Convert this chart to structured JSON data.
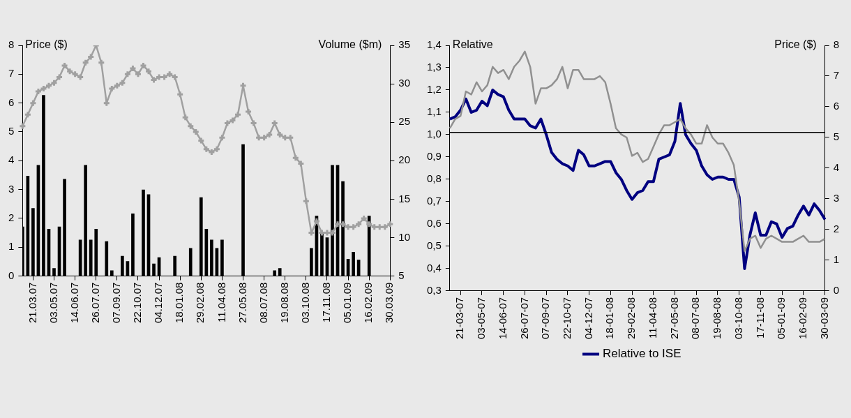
{
  "chart_data": [
    {
      "type": "line",
      "ylabel": "Price ($)",
      "y2label": "Volume ($m)",
      "marker": "cross",
      "grid": false,
      "categories": [
        null,
        null,
        "21.03.07",
        null,
        null,
        null,
        "03.05.07",
        null,
        null,
        null,
        "14.06.07",
        null,
        null,
        null,
        "26.07.07",
        null,
        null,
        null,
        "07.09.07",
        null,
        null,
        null,
        "22.10.07",
        null,
        null,
        null,
        "04.12.07",
        null,
        null,
        null,
        "18.01.08",
        null,
        null,
        null,
        "29.02.08",
        null,
        null,
        null,
        "11.04.08",
        null,
        null,
        null,
        "27.05.08",
        null,
        null,
        null,
        "08.07.08",
        null,
        null,
        null,
        "19.08.08",
        null,
        null,
        null,
        "03.10.08",
        null,
        null,
        null,
        "17.11.08",
        null,
        null,
        null,
        "05.01.09",
        null,
        null,
        null,
        "16.02.09",
        null,
        null,
        null,
        "30.03.09"
      ],
      "ylim": [
        0,
        8
      ],
      "yticks": [
        0,
        1,
        2,
        3,
        4,
        5,
        6,
        7,
        8
      ],
      "y2lim": [
        5,
        35
      ],
      "y2ticks": [
        5,
        10,
        15,
        20,
        25,
        30,
        35
      ],
      "series": [
        {
          "type": "line",
          "color": "#a0a0a0",
          "values": [
            5.2,
            5.6,
            6.0,
            6.4,
            6.5,
            6.6,
            6.7,
            6.9,
            7.3,
            7.1,
            7.0,
            6.9,
            7.4,
            7.6,
            8.0,
            7.4,
            6.0,
            6.5,
            6.6,
            6.7,
            7.0,
            7.2,
            7.0,
            7.3,
            7.1,
            6.8,
            6.9,
            6.9,
            7.0,
            6.9,
            6.3,
            5.5,
            5.2,
            5.0,
            4.7,
            4.4,
            4.3,
            4.4,
            4.8,
            5.3,
            5.4,
            5.6,
            6.6,
            5.7,
            5.3,
            4.8,
            4.8,
            4.9,
            5.3,
            4.9,
            4.8,
            4.8,
            4.1,
            3.9,
            2.6,
            1.5,
            1.9,
            1.5,
            1.5,
            1.5,
            1.8,
            1.8,
            1.7,
            1.7,
            1.8,
            2.0,
            1.8,
            1.7,
            1.7,
            1.7,
            1.8
          ]
        },
        {
          "type": "bar",
          "axis": "y2",
          "color": "#000000",
          "values": [
            11.4,
            18,
            13.8,
            19.4,
            28.5,
            11.1,
            6.0,
            11.4,
            17.6,
            null,
            null,
            9.7,
            19.4,
            9.7,
            11.1,
            null,
            9.5,
            5.7,
            null,
            7.6,
            6.9,
            13.1,
            null,
            16.2,
            15.6,
            6.6,
            7.4,
            null,
            null,
            7.6,
            null,
            null,
            8.6,
            null,
            15.2,
            11.1,
            9.7,
            8.6,
            9.7,
            null,
            null,
            null,
            22.1,
            null,
            null,
            null,
            null,
            null,
            5.7,
            6.0,
            null,
            null,
            null,
            null,
            null,
            8.6,
            12.8,
            10.7,
            10.0,
            19.4,
            19.4,
            17.3,
            7.2,
            8.1,
            7.1,
            null,
            12.8,
            null,
            null,
            null,
            null
          ]
        }
      ]
    },
    {
      "type": "line",
      "ylabel": "Relative",
      "y2label": "Price ($)",
      "legend": "bottom",
      "grid": false,
      "categories": [
        null,
        null,
        "21-03-07",
        null,
        null,
        null,
        "03-05-07",
        null,
        null,
        null,
        "14-06-07",
        null,
        null,
        null,
        "26-07-07",
        null,
        null,
        null,
        "07-09-07",
        null,
        null,
        null,
        "22-10-07",
        null,
        null,
        null,
        "04-12-07",
        null,
        null,
        null,
        "18-01-08",
        null,
        null,
        null,
        "29-02-08",
        null,
        null,
        null,
        "11-04-08",
        null,
        null,
        null,
        "27-05-08",
        null,
        null,
        null,
        "08-07-08",
        null,
        null,
        null,
        "19-08-08",
        null,
        null,
        null,
        "03-10-08",
        null,
        null,
        null,
        "17-11-08",
        null,
        null,
        null,
        "05-01-09",
        null,
        null,
        null,
        "16-02-09",
        null,
        null,
        null,
        "30-03-09"
      ],
      "ylim": [
        0.3,
        1.4
      ],
      "yticks": [
        {
          "value": 0.3,
          "label": "0,3"
        },
        {
          "value": 0.4,
          "label": "0,4"
        },
        {
          "value": 0.5,
          "label": "0,5"
        },
        {
          "value": 0.6,
          "label": "0,6"
        },
        {
          "value": 0.7,
          "label": "0,7"
        },
        {
          "value": 0.8,
          "label": "0,8"
        },
        {
          "value": 0.9,
          "label": "0,9"
        },
        {
          "value": 1.0,
          "label": "1,0"
        },
        {
          "value": 1.1,
          "label": "1,1"
        },
        {
          "value": 1.2,
          "label": "1,2"
        },
        {
          "value": 1.3,
          "label": "1,3"
        },
        {
          "value": 1.4,
          "label": "1,4"
        }
      ],
      "y2lim": [
        0,
        8
      ],
      "y2ticks": [
        0,
        1,
        2,
        3,
        4,
        5,
        6,
        7,
        8
      ],
      "ref_lines": [
        {
          "axis": "y",
          "value": 1.01,
          "color": "#000000"
        }
      ],
      "series": [
        {
          "axis": "y2",
          "color": "#909090",
          "values": [
            5.3,
            5.6,
            5.7,
            6.5,
            6.4,
            6.8,
            6.5,
            6.7,
            7.3,
            7.1,
            7.2,
            6.9,
            7.3,
            7.5,
            7.8,
            7.3,
            6.1,
            6.6,
            6.6,
            6.7,
            6.9,
            7.3,
            6.6,
            7.2,
            7.2,
            6.9,
            6.9,
            6.9,
            7.0,
            6.8,
            6.1,
            5.3,
            5.1,
            5.0,
            4.4,
            4.5,
            4.2,
            4.3,
            4.7,
            5.1,
            5.4,
            5.4,
            5.5,
            5.6,
            5.3,
            5.1,
            4.8,
            4.8,
            5.4,
            5.0,
            4.8,
            4.8,
            4.5,
            4.1,
            2.9,
            1.3,
            1.7,
            1.8,
            1.4,
            1.7,
            1.8,
            1.7,
            1.6,
            1.6,
            1.6,
            1.7,
            1.8,
            1.6,
            1.6,
            1.6,
            1.7
          ]
        },
        {
          "name": "Relative to ISE",
          "color": "#000080",
          "values": [
            1.07,
            1.08,
            1.11,
            1.16,
            1.1,
            1.11,
            1.15,
            1.13,
            1.2,
            1.18,
            1.17,
            1.11,
            1.07,
            1.07,
            1.07,
            1.04,
            1.03,
            1.07,
            1.0,
            0.92,
            0.89,
            0.87,
            0.86,
            0.84,
            0.93,
            0.91,
            0.86,
            0.86,
            0.87,
            0.88,
            0.88,
            0.83,
            0.8,
            0.75,
            0.71,
            0.74,
            0.75,
            0.79,
            0.79,
            0.89,
            0.9,
            0.91,
            0.97,
            1.14,
            1.0,
            0.96,
            0.93,
            0.86,
            0.82,
            0.8,
            0.81,
            0.81,
            0.8,
            0.8,
            0.72,
            0.4,
            0.55,
            0.65,
            0.55,
            0.55,
            0.61,
            0.6,
            0.54,
            0.58,
            0.59,
            0.64,
            0.68,
            0.64,
            0.69,
            0.66,
            0.62
          ]
        }
      ]
    }
  ]
}
